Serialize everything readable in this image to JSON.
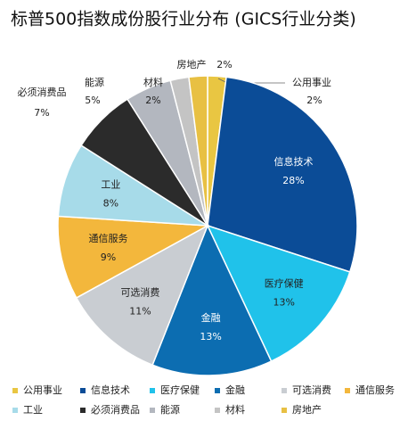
{
  "chart_data": {
    "type": "pie",
    "title": "标普500指数成份股行业分布 (GICS行业分类)",
    "categories": [
      "公用事业",
      "信息技术",
      "医疗保健",
      "金融",
      "可选消费",
      "通信服务",
      "工业",
      "必须消费品",
      "能源",
      "材料",
      "房地产"
    ],
    "values": [
      2,
      28,
      13,
      13,
      11,
      9,
      8,
      7,
      5,
      2,
      2
    ],
    "value_labels": [
      "2%",
      "28%",
      "13%",
      "13%",
      "11%",
      "9%",
      "8%",
      "7%",
      "5%",
      "2%",
      "2%"
    ],
    "colors": [
      "#e9c642",
      "#0b4c97",
      "#20c2ea",
      "#0c6db1",
      "#c9cdd2",
      "#f3b73c",
      "#a7dbe9",
      "#2b2b2b",
      "#b3b7bf",
      "#c4c4c4",
      "#e8c043"
    ],
    "legend": "bottom"
  }
}
